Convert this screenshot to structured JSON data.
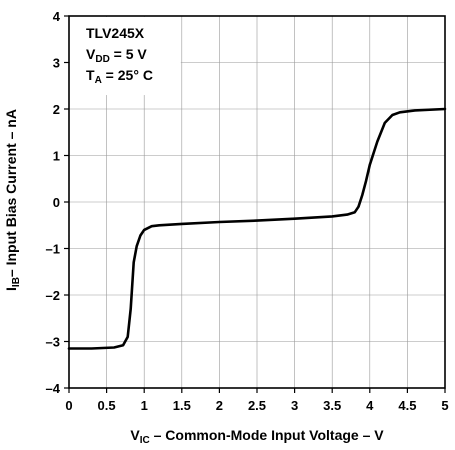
{
  "chart_data": {
    "type": "line",
    "title": "",
    "xlabel": {
      "main": "V",
      "sub": "IC",
      "rest": " – Common-Mode Input Voltage – V"
    },
    "ylabel": {
      "main": "I",
      "sub": "IB",
      "rest": "– Input Bias Current – nA"
    },
    "xlim": [
      0,
      5
    ],
    "ylim": [
      -4,
      4
    ],
    "x_ticks": [
      "0",
      "0.5",
      "1",
      "1.5",
      "2",
      "2.5",
      "3",
      "3.5",
      "4",
      "4.5",
      "5"
    ],
    "y_ticks": [
      "–4",
      "–3",
      "–2",
      "–1",
      "0",
      "1",
      "2",
      "3",
      "4"
    ],
    "grid": true,
    "annotation": {
      "device": "TLV245X",
      "vdd": {
        "main": "V",
        "sub": "DD",
        "rest": " = 5 V"
      },
      "ta": {
        "main": "T",
        "sub": "A",
        "rest": " = 25° C"
      }
    },
    "series": [
      {
        "x": [
          0.0,
          0.3,
          0.6,
          0.72,
          0.78,
          0.82,
          0.86,
          0.9,
          0.95,
          1.0,
          1.1,
          1.2,
          1.5,
          2.0,
          2.5,
          3.0,
          3.5,
          3.7,
          3.8,
          3.85,
          3.9,
          3.95,
          4.0,
          4.1,
          4.2,
          4.3,
          4.4,
          4.6,
          5.0
        ],
        "y": [
          -3.15,
          -3.15,
          -3.13,
          -3.08,
          -2.9,
          -2.3,
          -1.3,
          -0.95,
          -0.72,
          -0.6,
          -0.52,
          -0.5,
          -0.47,
          -0.43,
          -0.4,
          -0.36,
          -0.31,
          -0.27,
          -0.22,
          -0.1,
          0.15,
          0.45,
          0.8,
          1.3,
          1.7,
          1.87,
          1.93,
          1.97,
          2.0
        ]
      }
    ]
  }
}
